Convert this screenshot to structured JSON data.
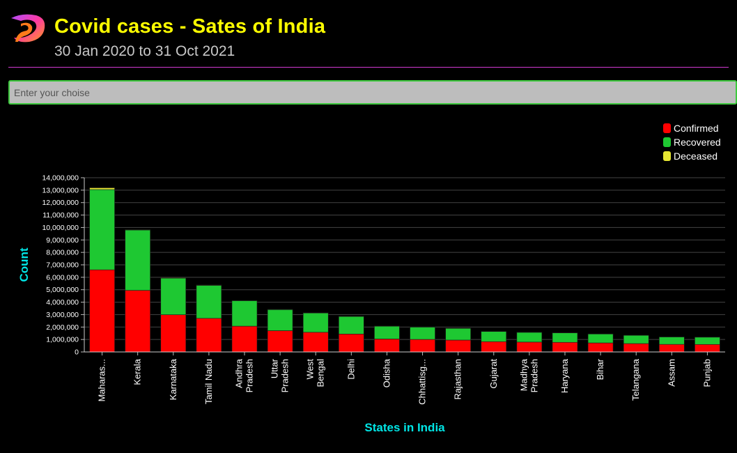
{
  "header": {
    "title": "Covid cases - Sates of India",
    "subtitle": "30 Jan 2020 to 31 Oct 2021"
  },
  "search": {
    "placeholder": "Enter your choise",
    "value": ""
  },
  "colors": {
    "confirmed": "#ff0000",
    "recovered": "#1ec832",
    "deceased": "#e6e632",
    "axis_title": "#00e5e5"
  },
  "chart_data": {
    "type": "bar",
    "stacked": true,
    "xlabel": "States in India",
    "ylabel": "Count",
    "ylim": [
      0,
      14000000
    ],
    "yticks": [
      0,
      1000000,
      2000000,
      3000000,
      4000000,
      5000000,
      6000000,
      7000000,
      8000000,
      9000000,
      10000000,
      11000000,
      12000000,
      13000000,
      14000000
    ],
    "ytick_labels": [
      "0",
      "1,000,000",
      "2,000,000",
      "3,000,000",
      "4,000,000",
      "5,000,000",
      "6,000,000",
      "7,000,000",
      "8,000,000",
      "9,000,000",
      "10,000,000",
      "11,000,000",
      "12,000,000",
      "13,000,000",
      "14,000,000"
    ],
    "grid": true,
    "legend_position": "top-right",
    "categories": [
      [
        "Maharas..."
      ],
      [
        "Kerala"
      ],
      [
        "Karnataka"
      ],
      [
        "Tamil Nadu"
      ],
      [
        "Andhra",
        "Pradesh"
      ],
      [
        "Uttar",
        "Pradesh"
      ],
      [
        "West",
        "Bengal"
      ],
      [
        "Delhi"
      ],
      [
        "Odisha"
      ],
      [
        "Chhattisg..."
      ],
      [
        "Rajasthan"
      ],
      [
        "Gujarat"
      ],
      [
        "Madhya",
        "Pradesh"
      ],
      [
        "Haryana"
      ],
      [
        "Bihar"
      ],
      [
        "Telangana"
      ],
      [
        "Assam"
      ],
      [
        "Punjab"
      ]
    ],
    "series": [
      {
        "name": "Confirmed",
        "values": [
          6600000,
          4950000,
          2990000,
          2700000,
          2070000,
          1710000,
          1580000,
          1440000,
          1040000,
          1006000,
          954000,
          826000,
          793000,
          771000,
          726000,
          671000,
          609000,
          602000
        ]
      },
      {
        "name": "Recovered",
        "values": [
          6450000,
          4850000,
          2940000,
          2650000,
          2050000,
          1690000,
          1550000,
          1410000,
          1030000,
          992000,
          945000,
          816000,
          782000,
          760000,
          716000,
          663000,
          598000,
          585000
        ]
      },
      {
        "name": "Deceased",
        "values": [
          140000,
          31000,
          38000,
          36000,
          14000,
          23000,
          19000,
          25000,
          8300,
          13500,
          8950,
          10000,
          10500,
          9900,
          9600,
          3950,
          5900,
          16500
        ]
      }
    ]
  }
}
